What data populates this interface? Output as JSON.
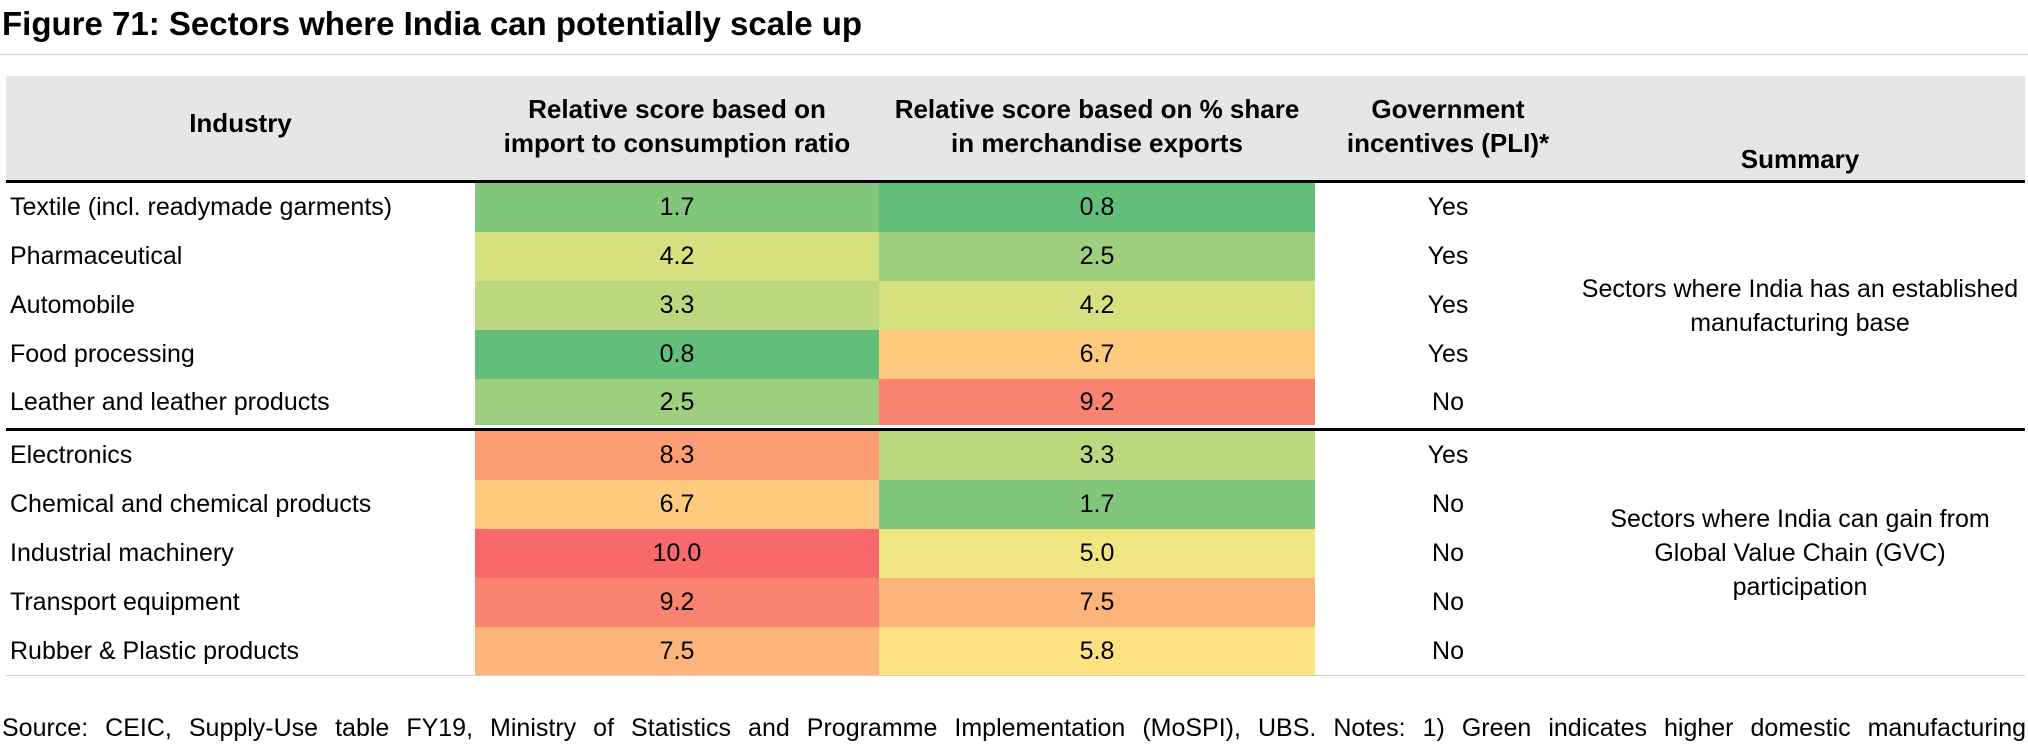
{
  "title": "Figure 71: Sectors where India can potentially scale up",
  "headers": {
    "industry": "Industry",
    "import_score_1": "Relative score based on",
    "import_score_2": "import to consumption ratio",
    "export_score_1": "Relative score based on % share",
    "export_score_2": "in merchandise exports",
    "pli_1": "Government",
    "pli_2": "incentives (PLI)*",
    "summary": "Summary"
  },
  "rows": [
    {
      "industry": "Textile (incl. readymade garments)",
      "import_score": "1.7",
      "export_score": "0.8",
      "pli": "Yes",
      "import_color": "#82c67b",
      "export_color": "#63be7b"
    },
    {
      "industry": "Pharmaceutical",
      "import_score": "4.2",
      "export_score": "2.5",
      "pli": "Yes",
      "import_color": "#d5e07f",
      "export_color": "#9ecf7e"
    },
    {
      "industry": "Automobile",
      "import_score": "3.3",
      "export_score": "4.2",
      "pli": "Yes",
      "import_color": "#bcd87e",
      "export_color": "#d5e07f"
    },
    {
      "industry": "Food processing",
      "import_score": "0.8",
      "export_score": "6.7",
      "pli": "Yes",
      "import_color": "#63be7b",
      "export_color": "#fecb7e"
    },
    {
      "industry": "Leather and leather products",
      "import_score": "2.5",
      "export_score": "9.2",
      "pli": "No",
      "import_color": "#9ecf7e",
      "export_color": "#f98370"
    },
    {
      "industry": "Electronics",
      "import_score": "8.3",
      "export_score": "3.3",
      "pli": "Yes",
      "import_color": "#fb9c75",
      "export_color": "#bcd87e"
    },
    {
      "industry": "Chemical and chemical products",
      "import_score": "6.7",
      "export_score": "1.7",
      "pli": "No",
      "import_color": "#fecb7e",
      "export_color": "#82c67b"
    },
    {
      "industry": "Industrial machinery",
      "import_score": "10.0",
      "export_score": "5.0",
      "pli": "No",
      "import_color": "#f8696b",
      "export_color": "#efe683"
    },
    {
      "industry": "Transport equipment",
      "import_score": "9.2",
      "export_score": "7.5",
      "pli": "No",
      "import_color": "#f98370",
      "export_color": "#fcb47a"
    },
    {
      "industry": "Rubber & Plastic products",
      "import_score": "7.5",
      "export_score": "5.8",
      "pli": "No",
      "import_color": "#fcb47a",
      "export_color": "#fee282"
    }
  ],
  "summaries": [
    {
      "line1": "Sectors where India has an established",
      "line2": "manufacturing base",
      "line3": ""
    },
    {
      "line1": "Sectors where India can gain from",
      "line2": "Global Value Chain (GVC)",
      "line3": "participation"
    }
  ],
  "source": "Source: CEIC, Supply-Use table FY19, Ministry of Statistics and Programme Implementation (MoSPI), UBS. Notes: 1) Green indicates higher domestic manufacturing"
}
